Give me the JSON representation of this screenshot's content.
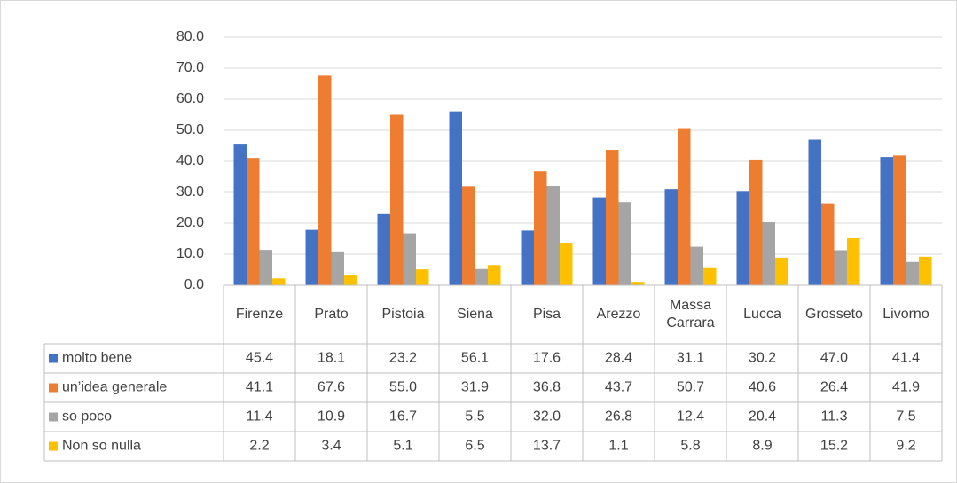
{
  "chart_data": {
    "type": "bar",
    "categories": [
      "Firenze",
      "Prato",
      "Pistoia",
      "Siena",
      "Pisa",
      "Arezzo",
      "Massa Carrara",
      "Lucca",
      "Grosseto",
      "Livorno"
    ],
    "series": [
      {
        "name": "molto bene",
        "color": "#4472c4",
        "values": [
          45.4,
          18.1,
          23.2,
          56.1,
          17.6,
          28.4,
          31.1,
          30.2,
          47.0,
          41.4
        ],
        "value_labels": [
          "45.4",
          "18.1",
          "23.2",
          "56.1",
          "17.6",
          "28.4",
          "31.1",
          "30.2",
          "47.0",
          "41.4"
        ]
      },
      {
        "name": "un’idea generale",
        "color": "#ed7d31",
        "values": [
          41.1,
          67.6,
          55.0,
          31.9,
          36.8,
          43.7,
          50.7,
          40.6,
          26.4,
          41.9
        ],
        "value_labels": [
          "41.1",
          "67.6",
          "55.0",
          "31.9",
          "36.8",
          "43.7",
          "50.7",
          "40.6",
          "26.4",
          "41.9"
        ]
      },
      {
        "name": "so poco",
        "color": "#a5a5a5",
        "values": [
          11.4,
          10.9,
          16.7,
          5.5,
          32.0,
          26.8,
          12.4,
          20.4,
          11.3,
          7.5
        ],
        "value_labels": [
          "11.4",
          "10.9",
          "16.7",
          "5.5",
          "32.0",
          "26.8",
          "12.4",
          "20.4",
          "11.3",
          "7.5"
        ]
      },
      {
        "name": "Non so nulla",
        "color": "#ffc000",
        "values": [
          2.2,
          3.4,
          5.1,
          6.5,
          13.7,
          1.1,
          5.8,
          8.9,
          15.2,
          9.2
        ],
        "value_labels": [
          "2.2",
          "3.4",
          "5.1",
          "6.5",
          "13.7",
          "1.1",
          "5.8",
          "8.9",
          "15.2",
          "9.2"
        ]
      }
    ],
    "ylim": [
      0,
      80
    ],
    "yticks": [
      {
        "value": 0,
        "label": "0.0"
      },
      {
        "value": 10,
        "label": "10.0"
      },
      {
        "value": 20,
        "label": "20.0"
      },
      {
        "value": 30,
        "label": "30.0"
      },
      {
        "value": 40,
        "label": "40.0"
      },
      {
        "value": 50,
        "label": "50.0"
      },
      {
        "value": 60,
        "label": "60.0"
      },
      {
        "value": 70,
        "label": "70.0"
      },
      {
        "value": 80,
        "label": "80.0"
      }
    ],
    "grid": true
  }
}
